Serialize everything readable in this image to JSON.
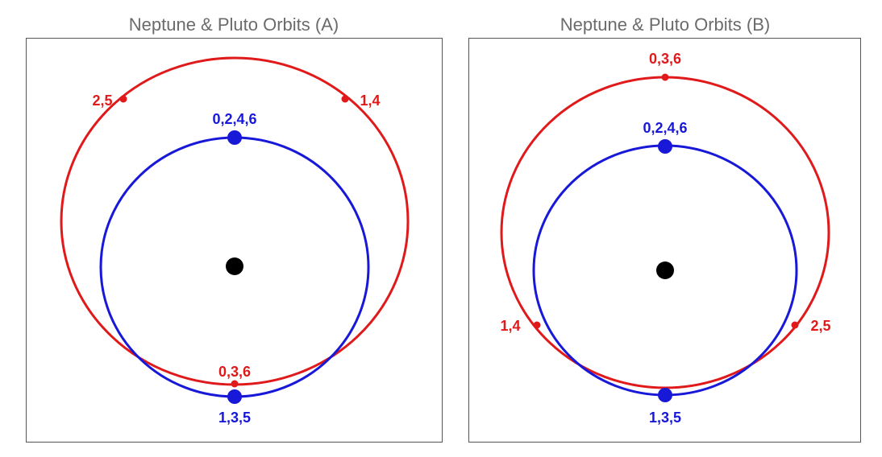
{
  "panels": [
    {
      "title": "Neptune & Pluto Orbits (A)",
      "labels": [
        "2,5",
        "1,4",
        "0,3,6",
        "0,2,4,6",
        "1,3,5"
      ]
    },
    {
      "title": "Neptune & Pluto Orbits (B)",
      "labels": [
        "0,3,6",
        "1,4",
        "2,5",
        "0,2,4,6",
        "1,3,5"
      ]
    }
  ]
}
